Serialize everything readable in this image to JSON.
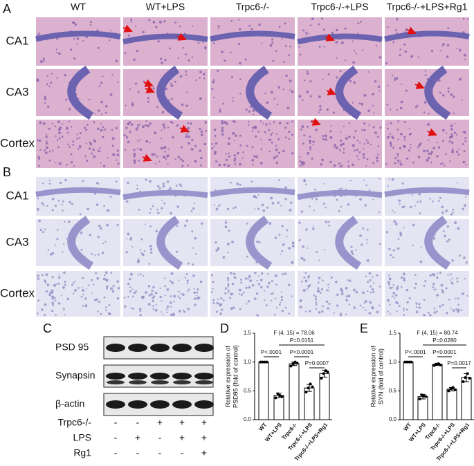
{
  "panels": [
    "A",
    "B",
    "C",
    "D",
    "E"
  ],
  "histology": {
    "columns": [
      "WT",
      "WT+LPS",
      "Trpc6-/-",
      "Trpc6-/-+LPS",
      "Trpc6-/-+LPS+Rg1"
    ],
    "rows_a": [
      "CA1",
      "CA3",
      "Cortex"
    ],
    "rows_b": [
      "CA1",
      "CA3",
      "Cortex"
    ]
  },
  "western_blot": {
    "proteins": [
      "PSD 95",
      "Synapsin",
      "β-actin"
    ],
    "conditions": [
      {
        "label": "Trpc6-/-",
        "signs": [
          "-",
          "-",
          "+",
          "+",
          "+"
        ]
      },
      {
        "label": "LPS",
        "signs": [
          "-",
          "+",
          "-",
          "+",
          "+"
        ]
      },
      {
        "label": "Rg1",
        "signs": [
          "-",
          "-",
          "-",
          "-",
          "+"
        ]
      }
    ]
  },
  "chart_data": [
    {
      "type": "bar",
      "ylabel": [
        "Relative expression of",
        "PSD95 (fold of control)"
      ],
      "categories": [
        "WT",
        "WT+LPS",
        "Trpc6-/-",
        "Trpc6-/-+LPS",
        "Trpc6-/-+LPS+Rg1"
      ],
      "values": [
        1.0,
        0.42,
        0.97,
        0.55,
        0.8
      ],
      "errors": [
        0,
        0.04,
        0.03,
        0.06,
        0.06
      ],
      "points": [
        [
          1,
          1,
          1,
          1
        ],
        [
          0.38,
          0.45,
          0.42,
          0.4
        ],
        [
          0.93,
          0.97,
          1.0,
          0.98
        ],
        [
          0.48,
          0.55,
          0.62,
          0.57
        ],
        [
          0.72,
          0.8,
          0.85,
          0.83
        ]
      ],
      "ylim": [
        0,
        1.5
      ],
      "yticks": [
        {
          "value": 0,
          "label": "0.0"
        },
        0.5,
        {
          "value": 1,
          "label": "1.0"
        },
        1.5
      ],
      "annotations": [
        "F (4, 15) = 78.06",
        "P<.0001",
        "P=0.0151",
        "P<0.0001",
        "P=0.0007"
      ]
    },
    {
      "type": "bar",
      "ylabel": [
        "Relative expression of",
        "SYN (fold of control)"
      ],
      "categories": [
        "WT",
        "WT+LPS",
        "Trpc6-/-",
        "Trpc6-/-+LPS",
        "Trpc6-/-+LPS+Rg1"
      ],
      "values": [
        1.0,
        0.4,
        0.96,
        0.53,
        0.73
      ],
      "errors": [
        0,
        0.04,
        0.02,
        0.03,
        0.07
      ],
      "points": [
        [
          1,
          1,
          1,
          1
        ],
        [
          0.36,
          0.43,
          0.41,
          0.4
        ],
        [
          0.94,
          0.96,
          0.97,
          0.95
        ],
        [
          0.5,
          0.54,
          0.56,
          0.52
        ],
        [
          0.66,
          0.73,
          0.8,
          0.72
        ]
      ],
      "ylim": [
        0,
        1.5
      ],
      "yticks": [
        {
          "value": 0,
          "label": "0.0"
        },
        0.5,
        {
          "value": 1,
          "label": "1.0"
        },
        1.5
      ],
      "annotations": [
        "F (4, 15) = 80.74",
        "P<.0001",
        "P=0.0280",
        "P<0.0001",
        "P=0.0017"
      ]
    }
  ]
}
